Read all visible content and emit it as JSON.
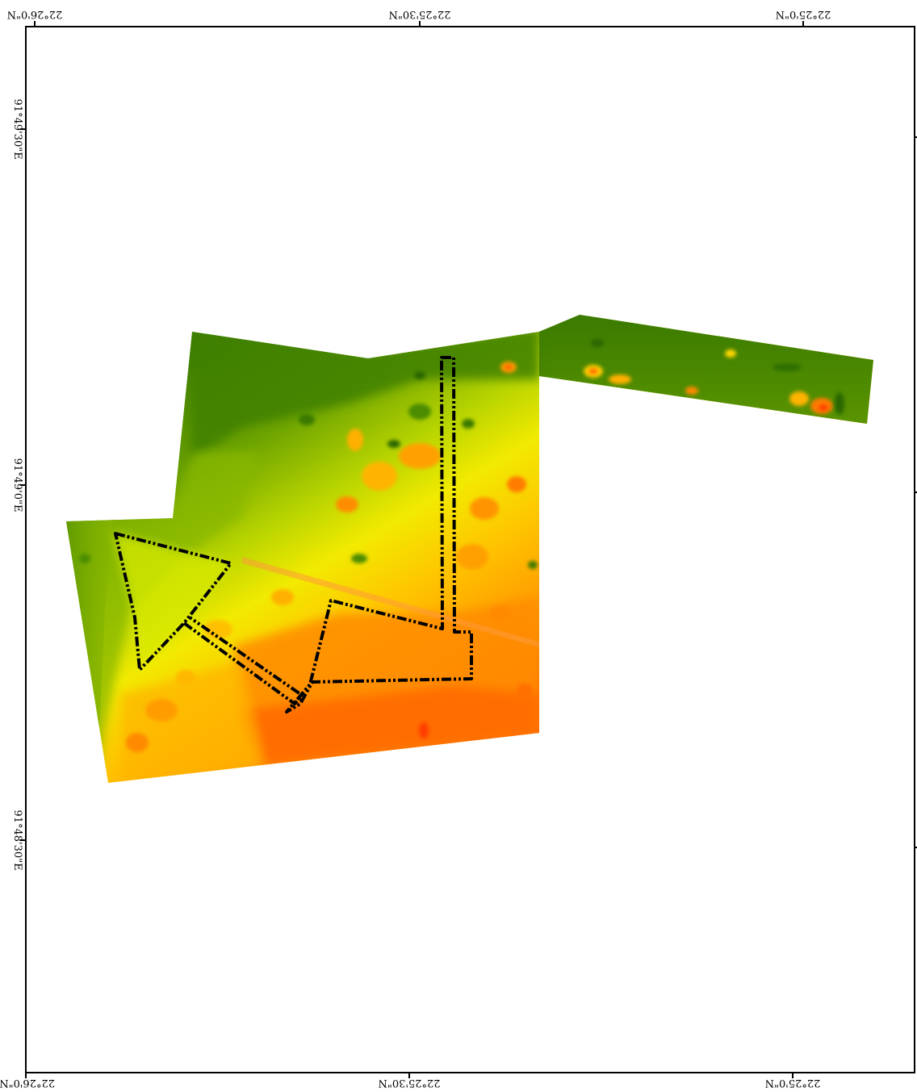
{
  "map": {
    "graticule": {
      "top_labels": [
        "22°26'0\"N",
        "22°25'30\"N",
        "22°25'0\"N"
      ],
      "bottom_labels": [
        "22°26'0\"N",
        "22°25'30\"N",
        "22°25'0\"N"
      ],
      "left_labels": [
        "91°49'30\"E",
        "91°49'0\"E",
        "91°48'30\"E"
      ]
    },
    "colors": {
      "frame": "#000000",
      "boundary": "#000000",
      "ramp": [
        "#2f6e00",
        "#4a8a00",
        "#6ea400",
        "#a6c800",
        "#dfe800",
        "#ffe000",
        "#ffb000",
        "#ff8a00",
        "#ff5a00"
      ]
    },
    "layers": {
      "raster": "index-raster",
      "outline": "study-boundary"
    },
    "orientation": "rotated-180"
  }
}
